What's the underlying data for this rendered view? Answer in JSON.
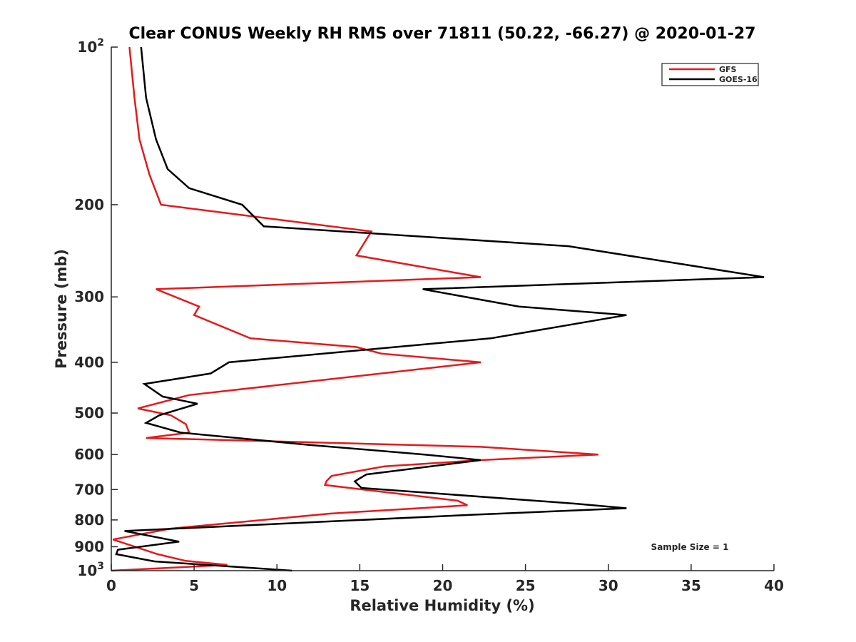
{
  "chart_data": {
    "type": "line",
    "title": "Clear CONUS Weekly RH RMS over 71811 (50.22, -66.27) @ 2020-01-27",
    "xlabel": "Relative Humidity (%)",
    "ylabel": "Pressure (mb)",
    "xlim": [
      0,
      40
    ],
    "ylim": [
      100,
      1000
    ],
    "yscale": "log",
    "y_reversed": true,
    "x_ticks": [
      "0",
      "5",
      "10",
      "15",
      "20",
      "25",
      "30",
      "35",
      "40"
    ],
    "y_tick_values": [
      100,
      200,
      300,
      400,
      500,
      600,
      700,
      800,
      900,
      1000
    ],
    "y_tick_labels": [
      {
        "base": "10",
        "exp": "2"
      },
      {
        "base": "200",
        "exp": ""
      },
      {
        "base": "300",
        "exp": ""
      },
      {
        "base": "400",
        "exp": ""
      },
      {
        "base": "500",
        "exp": ""
      },
      {
        "base": "600",
        "exp": ""
      },
      {
        "base": "700",
        "exp": ""
      },
      {
        "base": "800",
        "exp": ""
      },
      {
        "base": "900",
        "exp": ""
      },
      {
        "base": "10",
        "exp": "3"
      }
    ],
    "grid": false,
    "legend_position": "top-right",
    "annotation": "Sample Size = 1",
    "series": [
      {
        "name": "GFS",
        "color": "#e41a1c",
        "points": [
          [
            1.1,
            100
          ],
          [
            1.4,
            125
          ],
          [
            1.7,
            150
          ],
          [
            2.3,
            175
          ],
          [
            3.0,
            200
          ],
          [
            15.7,
            225
          ],
          [
            14.8,
            250
          ],
          [
            22.3,
            275
          ],
          [
            2.7,
            290
          ],
          [
            5.3,
            313
          ],
          [
            5.0,
            325
          ],
          [
            8.4,
            360
          ],
          [
            14.8,
            374
          ],
          [
            16.3,
            385
          ],
          [
            22.3,
            400
          ],
          [
            4.7,
            462
          ],
          [
            1.6,
            490
          ],
          [
            3.6,
            505
          ],
          [
            4.5,
            525
          ],
          [
            4.7,
            545
          ],
          [
            2.1,
            558
          ],
          [
            22.3,
            580
          ],
          [
            29.4,
            600
          ],
          [
            22.3,
            615
          ],
          [
            16.5,
            632
          ],
          [
            13.3,
            659
          ],
          [
            13.0,
            674
          ],
          [
            12.9,
            686
          ],
          [
            20.9,
            735
          ],
          [
            21.5,
            750
          ],
          [
            13.2,
            778
          ],
          [
            3.6,
            831
          ],
          [
            0.1,
            872
          ],
          [
            2.8,
            930
          ],
          [
            4.5,
            958
          ],
          [
            7.0,
            975
          ],
          [
            0.0,
            1000
          ]
        ]
      },
      {
        "name": "GOES-16",
        "color": "#000000",
        "points": [
          [
            1.8,
            100
          ],
          [
            2.1,
            125
          ],
          [
            2.7,
            150
          ],
          [
            3.4,
            171
          ],
          [
            4.7,
            186
          ],
          [
            7.9,
            200
          ],
          [
            9.2,
            220
          ],
          [
            27.6,
            240
          ],
          [
            39.4,
            275
          ],
          [
            18.8,
            290
          ],
          [
            24.6,
            313
          ],
          [
            31.1,
            325
          ],
          [
            22.9,
            360
          ],
          [
            7.1,
            400
          ],
          [
            6.0,
            420
          ],
          [
            2.0,
            440
          ],
          [
            3.1,
            465
          ],
          [
            5.2,
            480
          ],
          [
            2.9,
            505
          ],
          [
            2.1,
            522
          ],
          [
            4.2,
            545
          ],
          [
            11.9,
            575
          ],
          [
            18.9,
            600
          ],
          [
            22.3,
            615
          ],
          [
            15.4,
            655
          ],
          [
            14.7,
            675
          ],
          [
            15.1,
            695
          ],
          [
            28.1,
            745
          ],
          [
            31.1,
            760
          ],
          [
            21.8,
            782
          ],
          [
            0.8,
            840
          ],
          [
            4.1,
            880
          ],
          [
            0.4,
            912
          ],
          [
            0.3,
            930
          ],
          [
            2.6,
            960
          ],
          [
            10.9,
            1000
          ]
        ]
      }
    ]
  }
}
